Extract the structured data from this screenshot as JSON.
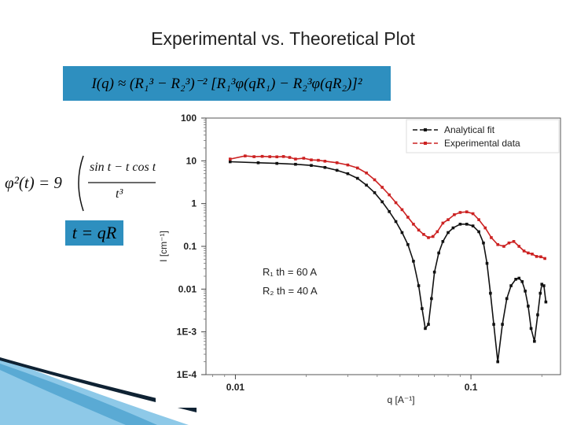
{
  "slide": {
    "title": "Experimental vs. Theoretical Plot"
  },
  "formulas": {
    "main": "I(q) ≈ (R₁³ − R₂³)⁻² [R₁³φ(qR₁) − R₂³φ(qR₂)]²",
    "phi_lhs": "φ²(t) = 9",
    "phi_num": "sin t − t cos t",
    "phi_den": "t³",
    "phi_exp": "2",
    "t_def": "t = qR"
  },
  "colors": {
    "formula_bg": "#2e8fbf",
    "fit": "#111111",
    "experimental": "#cc2222",
    "deco_dark": "#0f2233",
    "deco_light": "#8ec9e8"
  },
  "chart_data": {
    "type": "line",
    "x_scale": "log",
    "y_scale": "log",
    "xlabel": "q [A⁻¹]",
    "ylabel": "I [cm⁻¹]",
    "xlim": [
      0.0075,
      0.24
    ],
    "ylim": [
      0.0001,
      100
    ],
    "x_ticks": [
      {
        "value": 0.01,
        "label": "0.01"
      },
      {
        "value": 0.1,
        "label": "0.1"
      }
    ],
    "y_ticks": [
      {
        "value": 100,
        "label": "100"
      },
      {
        "value": 10,
        "label": "10"
      },
      {
        "value": 1,
        "label": "1"
      },
      {
        "value": 0.1,
        "label": "0.1"
      },
      {
        "value": 0.01,
        "label": "0.01"
      },
      {
        "value": 0.001,
        "label": "1E-3"
      },
      {
        "value": 0.0001,
        "label": "1E-4"
      }
    ],
    "legend_position": "top-right",
    "annotation": {
      "r1": "R₁ th = 60 A",
      "r2": "R₂ th = 40 A"
    },
    "series": [
      {
        "name": "Analytical fit",
        "color": "#111111",
        "x": [
          0.0095,
          0.0125,
          0.015,
          0.018,
          0.021,
          0.024,
          0.027,
          0.03,
          0.033,
          0.036,
          0.039,
          0.042,
          0.045,
          0.048,
          0.051,
          0.054,
          0.057,
          0.06,
          0.062,
          0.064,
          0.066,
          0.068,
          0.07,
          0.073,
          0.076,
          0.08,
          0.084,
          0.09,
          0.096,
          0.102,
          0.108,
          0.113,
          0.117,
          0.121,
          0.125,
          0.13,
          0.136,
          0.142,
          0.148,
          0.155,
          0.16,
          0.165,
          0.17,
          0.175,
          0.18,
          0.186,
          0.192,
          0.197,
          0.2,
          0.204,
          0.208
        ],
        "y": [
          9.5,
          9.0,
          8.7,
          8.3,
          7.8,
          7.0,
          6.0,
          5.0,
          3.9,
          2.7,
          1.8,
          1.1,
          0.65,
          0.38,
          0.21,
          0.11,
          0.045,
          0.012,
          0.0035,
          0.0012,
          0.0015,
          0.006,
          0.025,
          0.07,
          0.13,
          0.21,
          0.27,
          0.33,
          0.33,
          0.3,
          0.22,
          0.12,
          0.04,
          0.008,
          0.0015,
          0.0002,
          0.0015,
          0.006,
          0.012,
          0.017,
          0.018,
          0.015,
          0.009,
          0.004,
          0.0012,
          0.0006,
          0.0025,
          0.008,
          0.013,
          0.012,
          0.005
        ]
      },
      {
        "name": "Experimental data",
        "color": "#cc2222",
        "x": [
          0.0095,
          0.011,
          0.012,
          0.013,
          0.014,
          0.015,
          0.016,
          0.017,
          0.018,
          0.0195,
          0.021,
          0.0225,
          0.024,
          0.027,
          0.03,
          0.033,
          0.036,
          0.039,
          0.042,
          0.045,
          0.048,
          0.051,
          0.054,
          0.057,
          0.06,
          0.063,
          0.066,
          0.069,
          0.072,
          0.076,
          0.08,
          0.085,
          0.09,
          0.096,
          0.102,
          0.108,
          0.115,
          0.122,
          0.13,
          0.138,
          0.145,
          0.152,
          0.16,
          0.168,
          0.175,
          0.182,
          0.19,
          0.198,
          0.206
        ],
        "y": [
          11.0,
          13.0,
          12.5,
          12.7,
          12.5,
          12.4,
          12.6,
          12.0,
          11.0,
          11.5,
          10.5,
          10.3,
          9.8,
          9.0,
          8.0,
          6.8,
          5.2,
          3.6,
          2.4,
          1.6,
          1.05,
          0.72,
          0.48,
          0.33,
          0.24,
          0.19,
          0.16,
          0.17,
          0.22,
          0.35,
          0.42,
          0.55,
          0.62,
          0.64,
          0.58,
          0.42,
          0.27,
          0.16,
          0.11,
          0.1,
          0.12,
          0.13,
          0.1,
          0.078,
          0.07,
          0.066,
          0.058,
          0.057,
          0.052
        ]
      }
    ]
  }
}
